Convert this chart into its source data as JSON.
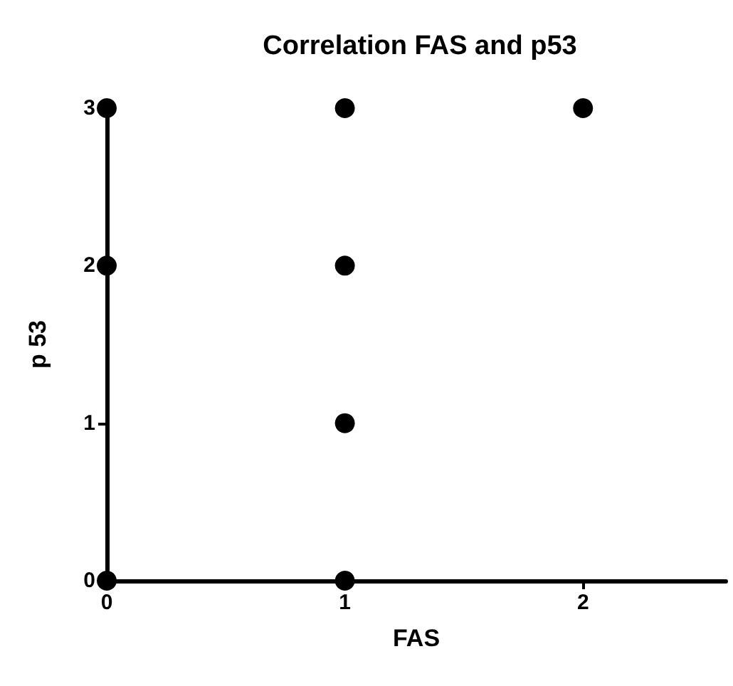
{
  "chart_data": {
    "type": "scatter",
    "title": "Correlation FAS and p53",
    "xlabel": "FAS",
    "ylabel": "p 53",
    "x": [
      0,
      0,
      0,
      1,
      1,
      1,
      1,
      2
    ],
    "values": [
      3,
      2,
      0,
      3,
      2,
      1,
      0,
      3
    ],
    "color": "#000000",
    "marker": "circle",
    "grid": false,
    "xlim": [
      0,
      2.6
    ],
    "xticks": [
      0,
      1,
      2
    ],
    "ylim": [
      0,
      3
    ],
    "yticks": [
      0,
      1,
      2,
      3
    ]
  }
}
